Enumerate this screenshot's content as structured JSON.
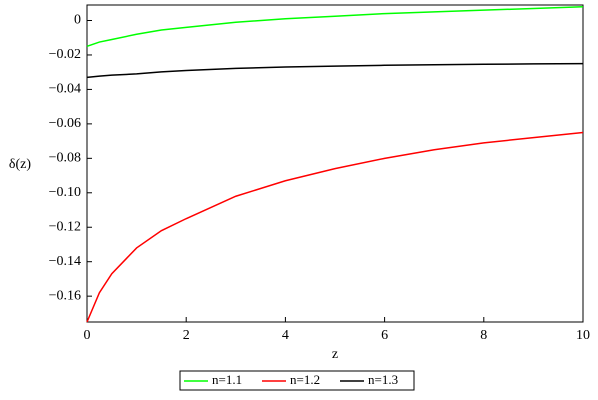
{
  "chart_data": {
    "type": "line",
    "x_label": "z",
    "y_label": "δ(z)",
    "x": [
      0,
      0.25,
      0.5,
      1,
      1.5,
      2,
      3,
      4,
      5,
      6,
      7,
      8,
      9,
      10
    ],
    "series": [
      {
        "name": "n=1.1",
        "color": "#00ff00",
        "values": [
          -0.015,
          -0.0125,
          -0.011,
          -0.008,
          -0.0055,
          -0.004,
          -0.001,
          0.001,
          0.0025,
          0.004,
          0.005,
          0.006,
          0.007,
          0.008
        ]
      },
      {
        "name": "n=1.2",
        "color": "#ff0000",
        "values": [
          -0.175,
          -0.158,
          -0.147,
          -0.132,
          -0.122,
          -0.115,
          -0.102,
          -0.093,
          -0.086,
          -0.08,
          -0.075,
          -0.071,
          -0.068,
          -0.065
        ]
      },
      {
        "name": "n=1.3",
        "color": "#000000",
        "values": [
          -0.033,
          -0.0323,
          -0.0317,
          -0.031,
          -0.0298,
          -0.029,
          -0.0278,
          -0.027,
          -0.0265,
          -0.026,
          -0.0257,
          -0.0254,
          -0.0252,
          -0.025
        ]
      }
    ],
    "xlim": [
      0,
      10
    ],
    "xticks": [
      0,
      2,
      4,
      6,
      8,
      10
    ],
    "ylim": [
      -0.175,
      0.009
    ],
    "yticks": [
      0,
      {
        "value": -0.02,
        "label": "−0.02"
      },
      {
        "value": -0.04,
        "label": "−0.04"
      },
      {
        "value": -0.06,
        "label": "−0.06"
      },
      {
        "value": -0.08,
        "label": "−0.08"
      },
      {
        "value": -0.1,
        "label": "−0.10"
      },
      {
        "value": -0.12,
        "label": "−0.12"
      },
      {
        "value": -0.14,
        "label": "−0.14"
      },
      {
        "value": -0.16,
        "label": "−0.16"
      }
    ],
    "legend": "bottom"
  }
}
